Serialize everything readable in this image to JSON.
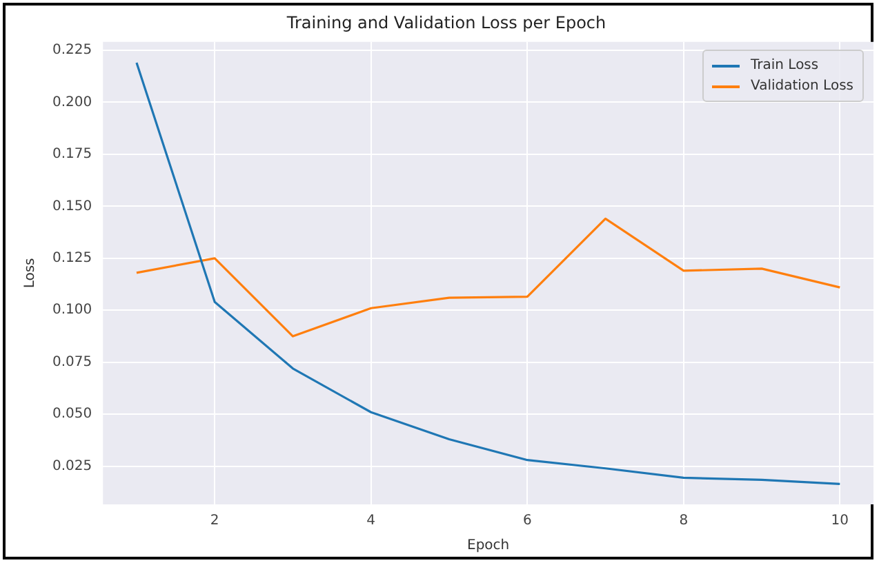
{
  "chart_data": {
    "type": "line",
    "title": "Training and Validation Loss per Epoch",
    "xlabel": "Epoch",
    "ylabel": "Loss",
    "x": [
      1,
      2,
      3,
      4,
      5,
      6,
      7,
      8,
      9,
      10
    ],
    "series": [
      {
        "name": "Train Loss",
        "color": "#1f77b4",
        "values": [
          0.219,
          0.104,
          0.072,
          0.051,
          0.038,
          0.028,
          0.024,
          0.0195,
          0.0185,
          0.0165
        ]
      },
      {
        "name": "Validation Loss",
        "color": "#ff7f0e",
        "values": [
          0.118,
          0.125,
          0.0875,
          0.101,
          0.106,
          0.1065,
          0.144,
          0.119,
          0.12,
          0.111
        ]
      }
    ],
    "xlim": [
      0.57,
      10.43
    ],
    "xticks": [
      2,
      4,
      6,
      8,
      10
    ],
    "ylim": [
      0.0067,
      0.229
    ],
    "yticks": [
      0.025,
      {
        "value": 0.05,
        "label": "0.050"
      },
      0.075,
      {
        "value": 0.1,
        "label": "0.100"
      },
      0.125,
      {
        "value": 0.15,
        "label": "0.150"
      },
      0.175,
      {
        "value": 0.2,
        "label": "0.200"
      },
      0.225
    ],
    "grid": true,
    "legend": "top right",
    "marker": "none",
    "line_style": "solid"
  }
}
